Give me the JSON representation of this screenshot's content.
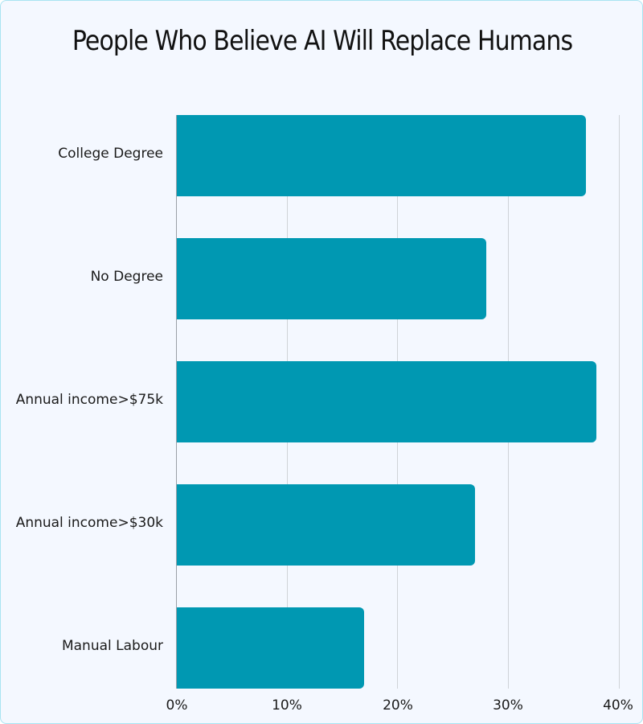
{
  "chart_data": {
    "type": "bar",
    "orientation": "horizontal",
    "title": "People Who Believe AI Will Replace Humans",
    "categories": [
      "College Degree",
      "No Degree",
      "Annual income>$75k",
      "Annual income>$30k",
      "Manual Labour"
    ],
    "values": [
      37,
      28,
      38,
      27,
      17
    ],
    "xlabel": "",
    "ylabel": "",
    "xlim": [
      0,
      40
    ],
    "x_ticks": [
      "0%",
      "10%",
      "20%",
      "30%",
      "40%"
    ],
    "grid": true,
    "bar_color": "#0098b2"
  },
  "title": "People Who Believe AI Will Replace Humans",
  "labels": [
    "College Degree",
    "No Degree",
    "Annual income>$75k",
    "Annual income>$30k",
    "Manual Labour"
  ],
  "ticks": [
    "0%",
    "10%",
    "20%",
    "30%",
    "40%"
  ]
}
